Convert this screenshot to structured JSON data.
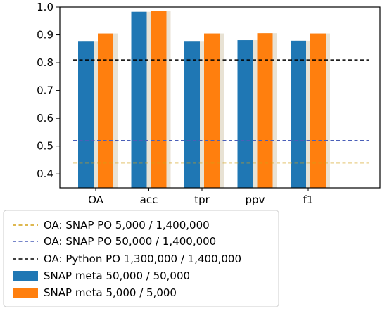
{
  "chart_data": {
    "type": "bar",
    "categories": [
      "OA",
      "acc",
      "tpr",
      "ppv",
      "f1"
    ],
    "series": [
      {
        "name": "SNAP meta 50,000 / 50,000",
        "values": [
          0.878,
          0.983,
          0.878,
          0.881,
          0.879
        ],
        "color": "#1f77b4"
      },
      {
        "name": "SNAP meta 5,000 / 5,000",
        "values": [
          0.905,
          0.986,
          0.905,
          0.906,
          0.905
        ],
        "color": "#ff7f0e"
      }
    ],
    "reference_lines": [
      {
        "name": "OA: SNAP PO 5,000 / 1,400,000",
        "value": 0.44,
        "color": "#d4a017",
        "style": "dashed"
      },
      {
        "name": "OA: SNAP PO 50,000 / 1,400,000",
        "value": 0.52,
        "color": "#4a5fb8",
        "style": "dashed"
      },
      {
        "name": "OA: Python PO 1,300,000 / 1,400,000",
        "value": 0.81,
        "color": "#000000",
        "style": "dashed"
      }
    ],
    "ylim": [
      0.35,
      1.0
    ],
    "yticks": [
      "0.4",
      "0.5",
      "0.6",
      "0.7",
      "0.8",
      "0.9",
      "1.0"
    ],
    "ytick_values": [
      0.4,
      0.5,
      0.6,
      0.7,
      0.8,
      0.9,
      1.0
    ],
    "title": "",
    "xlabel": "",
    "ylabel": "",
    "grid": false,
    "legend_placement": "below"
  }
}
